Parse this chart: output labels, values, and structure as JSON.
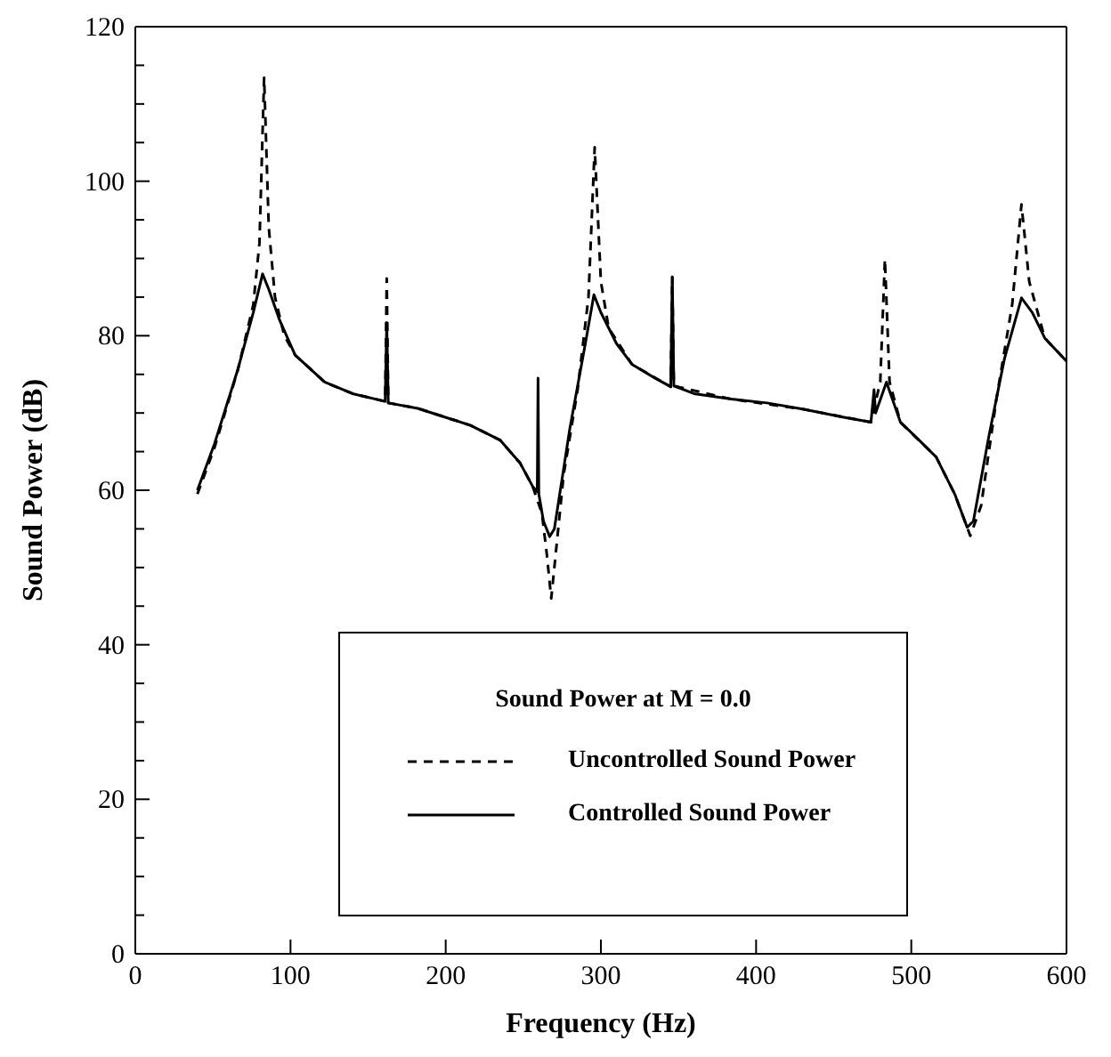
{
  "chart_data": {
    "type": "line",
    "xlabel": "Frequency (Hz)",
    "ylabel": "Sound Power (dB)",
    "legend_title": "Sound Power at M = 0.0",
    "legend": "bottom",
    "grid": false,
    "marker": "none",
    "xlim": [
      0,
      600
    ],
    "xticks": [
      0,
      100,
      200,
      300,
      400,
      500,
      600
    ],
    "ylim": [
      0,
      120
    ],
    "yticks": [
      0,
      {
        "value": 5,
        "label": null
      },
      {
        "value": 10,
        "label": null
      },
      {
        "value": 15,
        "label": null
      },
      20,
      {
        "value": 25,
        "label": null
      },
      {
        "value": 30,
        "label": null
      },
      {
        "value": 35,
        "label": null
      },
      40,
      {
        "value": 45,
        "label": null
      },
      {
        "value": 50,
        "label": null
      },
      {
        "value": 55,
        "label": null
      },
      60,
      {
        "value": 65,
        "label": null
      },
      {
        "value": 70,
        "label": null
      },
      {
        "value": 75,
        "label": null
      },
      80,
      {
        "value": 85,
        "label": null
      },
      {
        "value": 90,
        "label": null
      },
      {
        "value": 95,
        "label": null
      },
      100,
      {
        "value": 105,
        "label": null
      },
      {
        "value": 110,
        "label": null
      },
      {
        "value": 115,
        "label": null
      },
      120
    ],
    "series": [
      {
        "name": "Uncontrolled Sound Power",
        "color": "#000000",
        "line_style": "dashed",
        "x": [
          40,
          51,
          66,
          76,
          80,
          83,
          86,
          90,
          96,
          103,
          122,
          140,
          161,
          162,
          163,
          182,
          216,
          235,
          248,
          256,
          262,
          265,
          268,
          271,
          276,
          285,
          292,
          296,
          300,
          305,
          320,
          345,
          346,
          347,
          384,
          430,
          474,
          480,
          483,
          486,
          493,
          516,
          528,
          538,
          545,
          555,
          565,
          571,
          576,
          586,
          600
        ],
        "values": [
          59.5,
          65.5,
          75.5,
          84,
          92,
          113.4,
          94,
          85,
          80,
          77.5,
          74,
          72.5,
          71.5,
          87.4,
          71.3,
          70.6,
          68.4,
          66.5,
          63.5,
          60.5,
          57,
          52,
          46,
          52,
          62,
          73,
          85,
          104.4,
          87,
          81,
          76.3,
          73.4,
          87.6,
          73.5,
          71.8,
          70.5,
          68.8,
          74,
          89.9,
          74,
          68.8,
          64.3,
          59.5,
          54.1,
          58,
          72,
          84,
          97,
          87,
          79.7,
          76.7
        ]
      },
      {
        "name": "Controlled Sound Power",
        "color": "#000000",
        "line_style": "solid",
        "x": [
          40,
          51,
          66,
          76,
          82,
          86,
          93,
          103,
          122,
          140,
          161,
          162,
          163,
          182,
          216,
          235,
          248,
          256,
          259,
          259.5,
          260,
          263,
          267,
          270,
          280,
          290,
          295.5,
          300,
          310,
          320,
          335,
          345,
          346,
          347,
          360,
          384,
          407,
          430,
          455,
          474,
          476,
          477,
          484,
          493,
          505,
          516,
          528,
          536,
          540,
          550,
          560,
          571,
          578,
          586,
          600
        ],
        "values": [
          60,
          66,
          75.6,
          83,
          88,
          86,
          82,
          77.5,
          74,
          72.5,
          71.5,
          81.7,
          71.3,
          70.6,
          68.4,
          66.5,
          63.5,
          60.5,
          59.8,
          74.5,
          59.5,
          56,
          54,
          55,
          68,
          79,
          85.3,
          83,
          79,
          76.3,
          74.5,
          73.4,
          87.6,
          73.5,
          72.5,
          71.8,
          71.3,
          70.5,
          69.5,
          68.8,
          73,
          70,
          74,
          68.8,
          66.5,
          64.3,
          59.5,
          55.2,
          56,
          67,
          77,
          84.9,
          83,
          79.7,
          76.7
        ]
      }
    ]
  }
}
